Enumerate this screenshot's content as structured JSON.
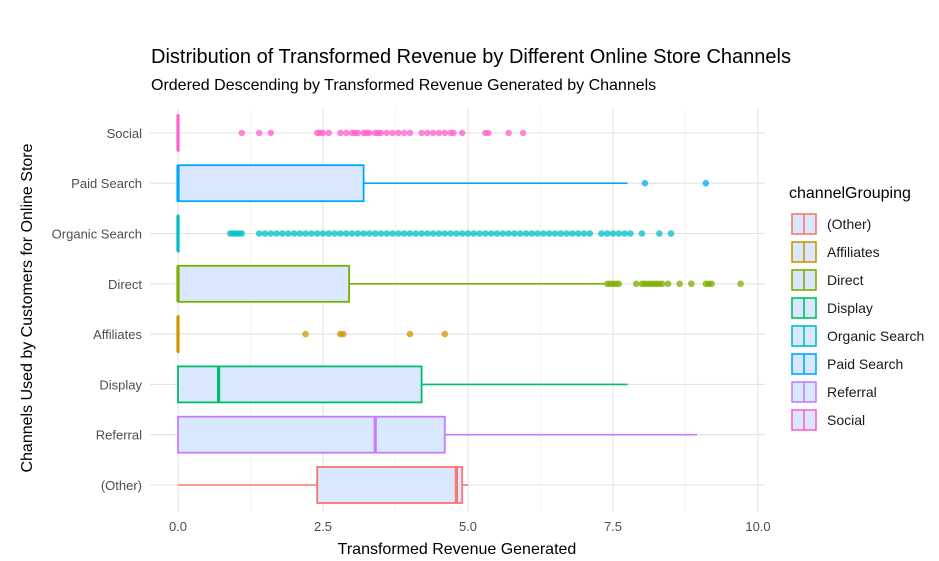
{
  "chart_data": {
    "type": "boxplot",
    "orientation": "horizontal",
    "title": "Distribution of Transformed Revenue by Different Online Store Channels",
    "subtitle": "Ordered Descending by Transformed Revenue Generated by Channels",
    "xlabel": "Transformed Revenue Generated",
    "ylabel": "Channels Used by Customers for Online Store",
    "xlim": [
      -0.5,
      10.2
    ],
    "x_ticks": [
      "0.0",
      "2.5",
      "5.0",
      "7.5",
      "10.0"
    ],
    "x_tick_values": [
      0,
      2.5,
      5,
      7.5,
      10
    ],
    "grid": true,
    "legend": {
      "title": "channelGrouping",
      "position": "right",
      "entries": [
        "(Other)",
        "Affiliates",
        "Direct",
        "Display",
        "Organic Search",
        "Paid Search",
        "Referral",
        "Social"
      ]
    },
    "box_fill": "#d9e8ff",
    "categories_bottom_to_top": [
      "(Other)",
      "Referral",
      "Display",
      "Affiliates",
      "Direct",
      "Organic Search",
      "Paid Search",
      "Social"
    ],
    "series": [
      {
        "name": "(Other)",
        "color": "#f8766d",
        "min": 0.0,
        "q1": 2.4,
        "median": 4.8,
        "q3": 4.9,
        "max": 5.0,
        "outliers": []
      },
      {
        "name": "Referral",
        "color": "#c77cff",
        "min": 0.0,
        "q1": 0.0,
        "median": 3.4,
        "q3": 4.6,
        "max": 8.95,
        "outliers": []
      },
      {
        "name": "Display",
        "color": "#00be67",
        "min": 0.0,
        "q1": 0.0,
        "median": 0.7,
        "q3": 4.2,
        "max": 7.75,
        "outliers": []
      },
      {
        "name": "Affiliates",
        "color": "#cd9600",
        "min": 0.0,
        "q1": 0.0,
        "median": 0.0,
        "q3": 0.0,
        "max": 0.0,
        "outliers": [
          2.2,
          2.8,
          2.85,
          4.0,
          4.6
        ]
      },
      {
        "name": "Direct",
        "color": "#7cae00",
        "min": 0.0,
        "q1": 0.0,
        "median": 0.0,
        "q3": 2.95,
        "max": 7.35,
        "outliers": [
          7.4,
          7.45,
          7.5,
          7.55,
          7.6,
          7.9,
          8.0,
          8.05,
          8.1,
          8.15,
          8.2,
          8.25,
          8.3,
          8.35,
          8.45,
          8.65,
          8.85,
          9.1,
          9.15,
          9.2,
          9.7
        ]
      },
      {
        "name": "Organic Search",
        "color": "#00bfc4",
        "min": 0.0,
        "q1": 0.0,
        "median": 0.0,
        "q3": 0.0,
        "max": 0.0,
        "outliers": [
          0.9,
          0.95,
          1.0,
          1.05,
          1.1,
          1.4,
          1.5,
          1.6,
          1.7,
          1.8,
          1.9,
          2.0,
          2.1,
          2.2,
          2.3,
          2.4,
          2.5,
          2.6,
          2.7,
          2.8,
          2.9,
          3.0,
          3.1,
          3.2,
          3.3,
          3.4,
          3.5,
          3.6,
          3.7,
          3.8,
          3.9,
          4.0,
          4.1,
          4.2,
          4.3,
          4.4,
          4.5,
          4.6,
          4.7,
          4.8,
          4.9,
          5.0,
          5.1,
          5.2,
          5.3,
          5.4,
          5.5,
          5.6,
          5.7,
          5.8,
          5.9,
          6.0,
          6.1,
          6.2,
          6.3,
          6.4,
          6.5,
          6.6,
          6.7,
          6.8,
          6.9,
          7.0,
          7.1,
          7.3,
          7.4,
          7.5,
          7.6,
          7.7,
          7.8,
          8.0,
          8.3,
          8.5
        ]
      },
      {
        "name": "Paid Search",
        "color": "#00a9ff",
        "min": 0.0,
        "q1": 0.0,
        "median": 0.0,
        "q3": 3.2,
        "max": 7.75,
        "outliers": [
          8.05,
          9.1
        ]
      },
      {
        "name": "Social",
        "color": "#ff61cc",
        "min": 0.0,
        "q1": 0.0,
        "median": 0.0,
        "q3": 0.0,
        "max": 0.0,
        "outliers": [
          1.1,
          1.4,
          1.6,
          2.4,
          2.45,
          2.5,
          2.6,
          2.8,
          2.9,
          3.0,
          3.05,
          3.1,
          3.2,
          3.25,
          3.3,
          3.4,
          3.45,
          3.5,
          3.6,
          3.7,
          3.8,
          3.9,
          4.0,
          4.2,
          4.3,
          4.4,
          4.5,
          4.6,
          4.7,
          4.75,
          4.9,
          5.3,
          5.35,
          5.7,
          5.95
        ]
      }
    ]
  }
}
